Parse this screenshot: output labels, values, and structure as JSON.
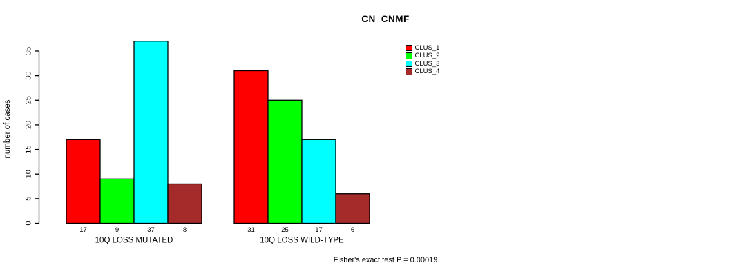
{
  "chart_data": {
    "type": "bar",
    "title": "CN_CNMF",
    "ylabel": "number of cases",
    "xlabel": "",
    "categories": [
      "10Q LOSS MUTATED",
      "10Q LOSS WILD-TYPE"
    ],
    "series": [
      {
        "name": "CLUS_1",
        "color": "#ff0000",
        "values": [
          17,
          31
        ]
      },
      {
        "name": "CLUS_2",
        "color": "#00ff00",
        "values": [
          9,
          25
        ]
      },
      {
        "name": "CLUS_3",
        "color": "#00ffff",
        "values": [
          37,
          17
        ]
      },
      {
        "name": "CLUS_4",
        "color": "#a52a2a",
        "values": [
          8,
          6
        ]
      }
    ],
    "bar_value_labels_shown": true,
    "yticks": [
      0,
      5,
      10,
      15,
      20,
      25,
      30,
      35
    ],
    "ylim": [
      0,
      37
    ],
    "grid": false,
    "legend_position": "right-of-plot",
    "annotation": "Fisher's exact test P = 0.00019"
  },
  "colors": {
    "axis": "#000000",
    "text": "#000000",
    "background": "#ffffff"
  }
}
